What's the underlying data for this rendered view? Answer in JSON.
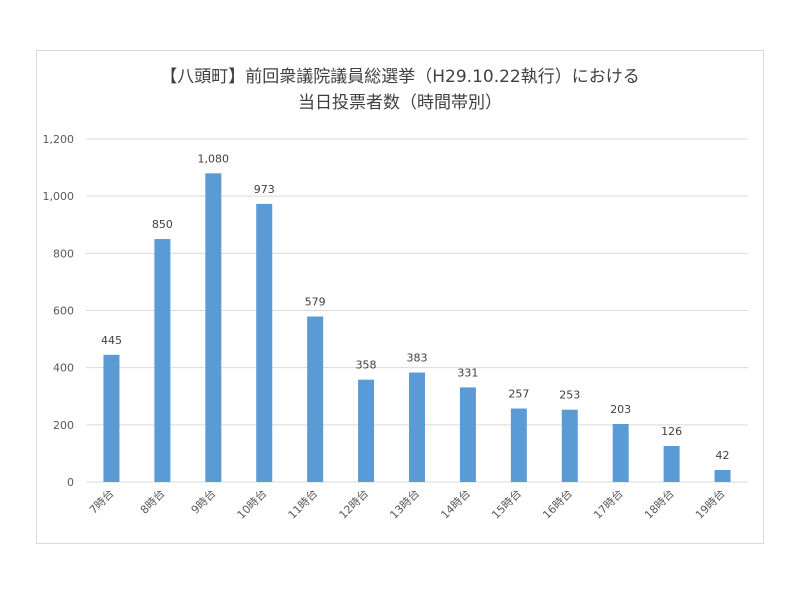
{
  "chart_data": {
    "type": "bar",
    "title": "【八頭町】前回衆議院議員総選挙（H29.10.22執行）における",
    "subtitle": "当日投票者数（時間帯別）",
    "categories": [
      "7時台",
      "8時台",
      "9時台",
      "10時台",
      "11時台",
      "12時台",
      "13時台",
      "14時台",
      "15時台",
      "16時台",
      "17時台",
      "18時台",
      "19時台"
    ],
    "values": [
      445,
      850,
      1080,
      973,
      579,
      358,
      383,
      331,
      257,
      253,
      203,
      126,
      42
    ],
    "value_labels": [
      "445",
      "850",
      "1,080",
      "973",
      "579",
      "358",
      "383",
      "331",
      "257",
      "253",
      "203",
      "126",
      "42"
    ],
    "ylim": [
      0,
      1200
    ],
    "yticks": [
      0,
      200,
      400,
      600,
      800,
      1000,
      1200
    ],
    "ytick_labels": [
      "0",
      "200",
      "400",
      "600",
      "800",
      "1,000",
      "1,200"
    ],
    "xlabel": "",
    "ylabel": "",
    "grid": true,
    "legend": "none",
    "bar_color": "#5b9bd5",
    "grid_color": "#d9d9d9"
  }
}
